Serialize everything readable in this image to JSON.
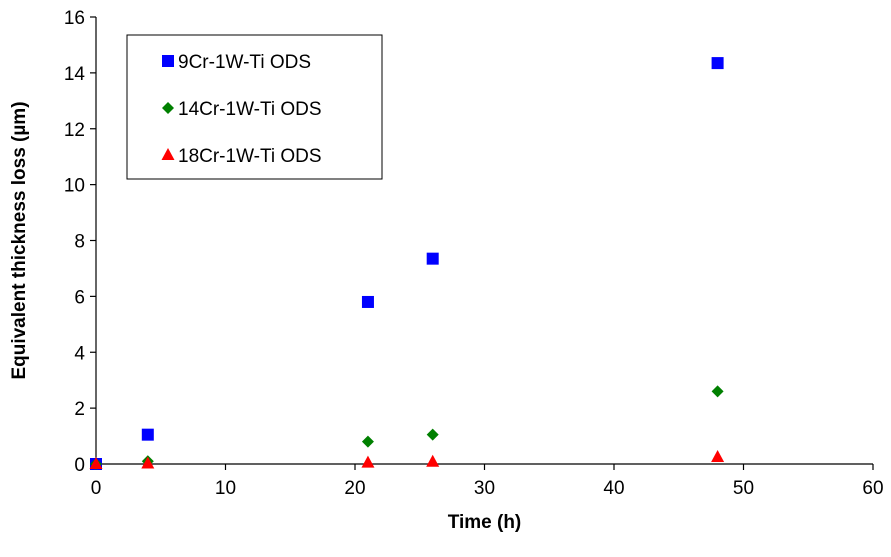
{
  "chart_data": {
    "type": "scatter",
    "title": "",
    "xlabel": "Time (h)",
    "ylabel": "Equivalent thickness loss (µm)",
    "xlim": [
      0,
      60
    ],
    "ylim": [
      0,
      16
    ],
    "x_ticks": [
      "0",
      "10",
      "20",
      "30",
      "40",
      "50",
      "60"
    ],
    "y_ticks": [
      "0",
      "2",
      "4",
      "6",
      "8",
      "10",
      "12",
      "14",
      "16"
    ],
    "grid": false,
    "legend_position": "top-left",
    "series": [
      {
        "name": "9Cr-1W-Ti ODS",
        "marker": "square",
        "color": "#0000FF",
        "points": [
          {
            "x": 0,
            "y": 0
          },
          {
            "x": 4,
            "y": 1.05
          },
          {
            "x": 21,
            "y": 5.8
          },
          {
            "x": 26,
            "y": 7.35
          },
          {
            "x": 48,
            "y": 14.35
          }
        ]
      },
      {
        "name": "14Cr-1W-Ti ODS",
        "marker": "diamond",
        "color": "#008000",
        "points": [
          {
            "x": 0,
            "y": 0
          },
          {
            "x": 4,
            "y": 0.1
          },
          {
            "x": 21,
            "y": 0.8
          },
          {
            "x": 26,
            "y": 1.05
          },
          {
            "x": 48,
            "y": 2.6
          }
        ]
      },
      {
        "name": "18Cr-1W-Ti ODS",
        "marker": "triangle",
        "color": "#FF0000",
        "points": [
          {
            "x": 0,
            "y": 0
          },
          {
            "x": 4,
            "y": 0.02
          },
          {
            "x": 21,
            "y": 0.05
          },
          {
            "x": 26,
            "y": 0.08
          },
          {
            "x": 48,
            "y": 0.25
          }
        ]
      }
    ]
  }
}
